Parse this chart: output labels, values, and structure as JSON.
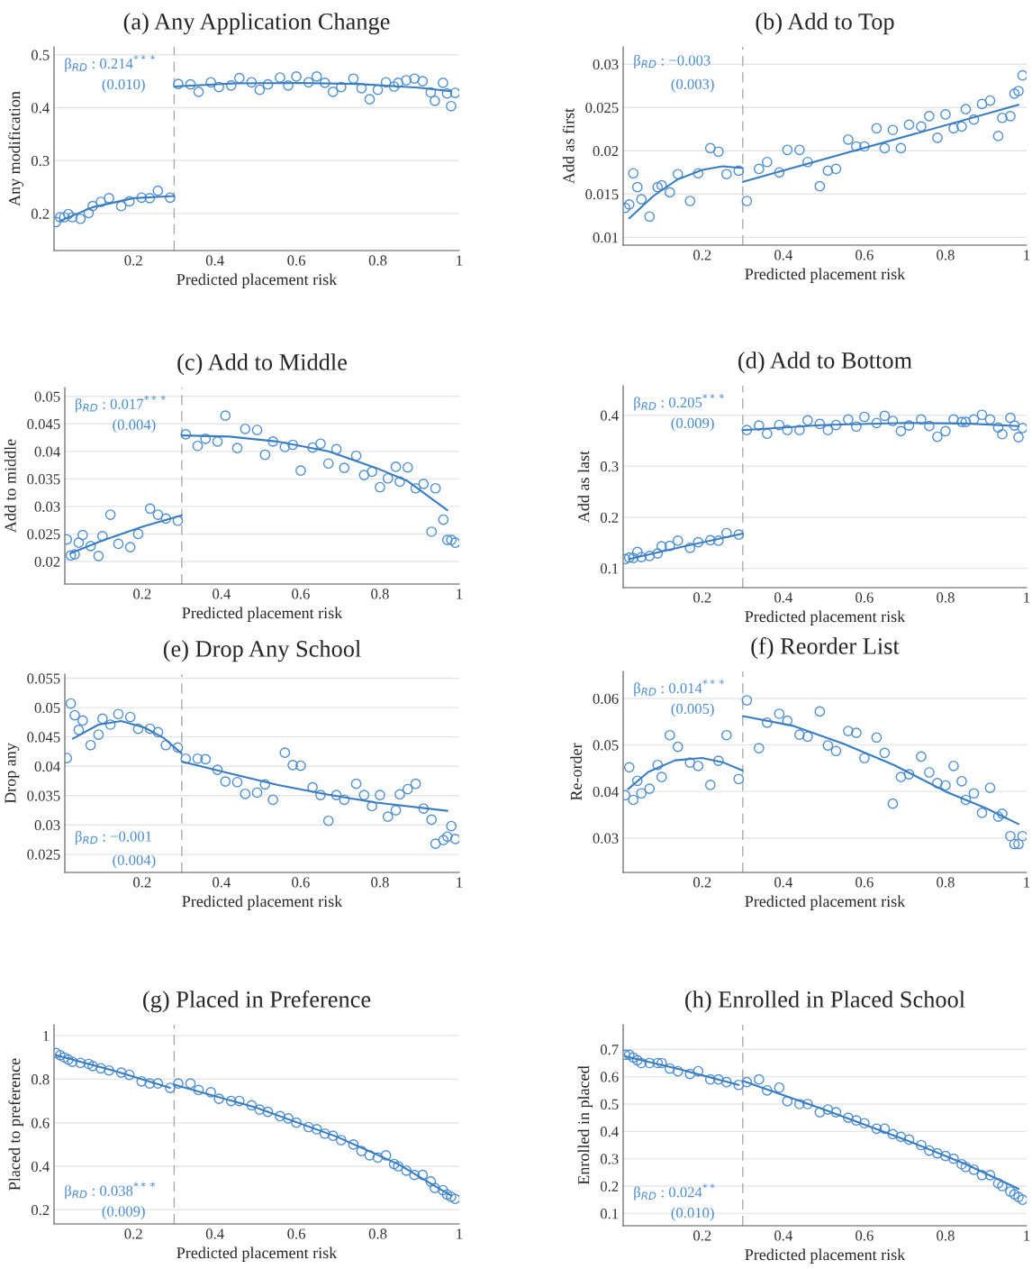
{
  "chart_data": [
    {
      "type": "scatter",
      "title": "(a) Any Application Change",
      "xlabel": "Predicted placement risk",
      "ylabel": "Any modification",
      "xlim": [
        0.005,
        1
      ],
      "xticks": [
        0.2,
        0.4,
        0.6,
        0.8,
        1
      ],
      "ylim": [
        0.13,
        0.515
      ],
      "yticks": [
        0.2,
        0.3,
        0.4,
        0.5
      ],
      "grid": "y",
      "annotations": [
        "β$_{RD}$ : 0.214$^{***}$",
        "(0.010)"
      ],
      "ref_lines": [
        {
          "axis": "x",
          "value": 0.3,
          "color": "#aaaaaa",
          "line_style": "dashed"
        }
      ],
      "series": [
        {
          "type": "scatter",
          "marker": "circle",
          "color": "#4f8fcd",
          "x": [
            0.01,
            0.02,
            0.03,
            0.04,
            0.05,
            0.07,
            0.09,
            0.1,
            0.12,
            0.14,
            0.17,
            0.19,
            0.22,
            0.24,
            0.26,
            0.29
          ],
          "values": [
            0.184,
            0.193,
            0.193,
            0.199,
            0.193,
            0.19,
            0.201,
            0.214,
            0.222,
            0.229,
            0.214,
            0.223,
            0.23,
            0.229,
            0.243,
            0.23
          ]
        },
        {
          "type": "scatter",
          "marker": "circle",
          "color": "#4f8fcd",
          "x": [
            0.31,
            0.34,
            0.36,
            0.39,
            0.41,
            0.44,
            0.46,
            0.49,
            0.51,
            0.53,
            0.56,
            0.58,
            0.6,
            0.63,
            0.65,
            0.67,
            0.69,
            0.71,
            0.74,
            0.76,
            0.78,
            0.8,
            0.82,
            0.84,
            0.85,
            0.87,
            0.89,
            0.91,
            0.93,
            0.94,
            0.96,
            0.97,
            0.98,
            0.99
          ],
          "values": [
            0.445,
            0.444,
            0.43,
            0.448,
            0.439,
            0.442,
            0.456,
            0.448,
            0.434,
            0.444,
            0.457,
            0.442,
            0.459,
            0.448,
            0.459,
            0.447,
            0.43,
            0.439,
            0.455,
            0.437,
            0.416,
            0.434,
            0.448,
            0.44,
            0.447,
            0.452,
            0.455,
            0.45,
            0.429,
            0.413,
            0.447,
            0.427,
            0.403,
            0.428
          ]
        },
        {
          "type": "line",
          "color": "#3a7dbf",
          "x": [
            0.02,
            0.1,
            0.2,
            0.3
          ],
          "values": [
            0.186,
            0.212,
            0.229,
            0.233
          ]
        },
        {
          "type": "line",
          "color": "#3a7dbf",
          "x": [
            0.3,
            0.45,
            0.6,
            0.75,
            0.9,
            0.98
          ],
          "values": [
            0.44,
            0.446,
            0.447,
            0.445,
            0.438,
            0.431
          ]
        }
      ]
    },
    {
      "type": "scatter",
      "title": "(b) Add to Top",
      "xlabel": "Predicted placement risk",
      "ylabel": "Add as first",
      "xlim": [
        0.005,
        1
      ],
      "xticks": [
        0.2,
        0.4,
        0.6,
        0.8,
        1
      ],
      "ylim": [
        0.0091,
        0.032
      ],
      "yticks": [
        0.01,
        0.015,
        0.02,
        0.025,
        0.03
      ],
      "grid": "y",
      "annotations": [
        "β$_{RD}$ : −0.003",
        "(0.003)"
      ],
      "ref_lines": [
        {
          "axis": "x",
          "value": 0.3,
          "color": "#aaaaaa",
          "line_style": "dashed"
        }
      ],
      "series": [
        {
          "type": "scatter",
          "marker": "circle",
          "color": "#4f8fcd",
          "x": [
            0.01,
            0.02,
            0.03,
            0.04,
            0.05,
            0.07,
            0.09,
            0.1,
            0.12,
            0.14,
            0.17,
            0.19,
            0.22,
            0.24,
            0.26,
            0.29
          ],
          "values": [
            0.0134,
            0.0138,
            0.0174,
            0.0158,
            0.0144,
            0.0124,
            0.0158,
            0.016,
            0.0152,
            0.0173,
            0.0142,
            0.0174,
            0.0203,
            0.0199,
            0.0173,
            0.0177
          ]
        },
        {
          "type": "scatter",
          "marker": "circle",
          "color": "#4f8fcd",
          "x": [
            0.31,
            0.34,
            0.36,
            0.39,
            0.41,
            0.44,
            0.46,
            0.49,
            0.51,
            0.53,
            0.56,
            0.58,
            0.6,
            0.63,
            0.65,
            0.67,
            0.69,
            0.71,
            0.74,
            0.76,
            0.78,
            0.8,
            0.82,
            0.84,
            0.85,
            0.87,
            0.89,
            0.91,
            0.93,
            0.94,
            0.96,
            0.97,
            0.98,
            0.99
          ],
          "values": [
            0.0142,
            0.0179,
            0.0187,
            0.0175,
            0.0201,
            0.0201,
            0.0187,
            0.0159,
            0.0177,
            0.0179,
            0.0213,
            0.0205,
            0.0205,
            0.0226,
            0.0203,
            0.0224,
            0.0203,
            0.023,
            0.0228,
            0.024,
            0.0215,
            0.0242,
            0.0226,
            0.0228,
            0.0248,
            0.0236,
            0.0254,
            0.0258,
            0.0217,
            0.0238,
            0.024,
            0.0266,
            0.0269,
            0.0287
          ]
        },
        {
          "type": "line",
          "color": "#3a7dbf",
          "x": [
            0.02,
            0.08,
            0.14,
            0.2,
            0.25,
            0.3
          ],
          "values": [
            0.0122,
            0.0148,
            0.0167,
            0.0178,
            0.0182,
            0.018
          ]
        },
        {
          "type": "line",
          "color": "#3a7dbf",
          "x": [
            0.3,
            0.98
          ],
          "values": [
            0.0164,
            0.0253
          ]
        }
      ]
    },
    {
      "type": "scatter",
      "title": "(c) Add to Middle",
      "xlabel": "Predicted placement risk",
      "ylabel": "Add to middle",
      "xlim": [
        0.005,
        1
      ],
      "xticks": [
        0.2,
        0.4,
        0.6,
        0.8,
        1
      ],
      "ylim": [
        0.0159,
        0.0516
      ],
      "yticks": [
        0.02,
        0.025,
        0.03,
        0.035,
        0.04,
        0.045,
        0.05
      ],
      "grid": "y",
      "annotations": [
        "β$_{RD}$ : 0.017$^{***}$",
        "(0.004)"
      ],
      "ref_lines": [
        {
          "axis": "x",
          "value": 0.3,
          "color": "#aaaaaa",
          "line_style": "dashed"
        }
      ],
      "series": [
        {
          "type": "scatter",
          "marker": "circle",
          "color": "#4f8fcd",
          "x": [
            0.01,
            0.02,
            0.03,
            0.04,
            0.05,
            0.07,
            0.09,
            0.1,
            0.12,
            0.14,
            0.17,
            0.19,
            0.22,
            0.24,
            0.26,
            0.29
          ],
          "values": [
            0.024,
            0.0211,
            0.0213,
            0.0234,
            0.0248,
            0.0228,
            0.021,
            0.0246,
            0.0285,
            0.0232,
            0.0226,
            0.025,
            0.0296,
            0.0285,
            0.0278,
            0.0274
          ]
        },
        {
          "type": "scatter",
          "marker": "circle",
          "color": "#4f8fcd",
          "x": [
            0.31,
            0.34,
            0.36,
            0.39,
            0.41,
            0.44,
            0.46,
            0.49,
            0.51,
            0.53,
            0.56,
            0.58,
            0.6,
            0.63,
            0.65,
            0.67,
            0.69,
            0.71,
            0.74,
            0.76,
            0.78,
            0.8,
            0.82,
            0.84,
            0.85,
            0.87,
            0.89,
            0.91,
            0.93,
            0.94,
            0.96,
            0.97,
            0.98,
            0.99
          ],
          "values": [
            0.0431,
            0.041,
            0.0423,
            0.0418,
            0.0465,
            0.0406,
            0.0441,
            0.0439,
            0.0394,
            0.0418,
            0.0408,
            0.0412,
            0.0365,
            0.0407,
            0.0414,
            0.0378,
            0.0404,
            0.037,
            0.0392,
            0.0357,
            0.0363,
            0.0335,
            0.0351,
            0.0372,
            0.0345,
            0.0371,
            0.0333,
            0.0341,
            0.0254,
            0.0333,
            0.0276,
            0.0239,
            0.0239,
            0.0234
          ]
        },
        {
          "type": "line",
          "color": "#3a7dbf",
          "x": [
            0.02,
            0.1,
            0.2,
            0.3
          ],
          "values": [
            0.0215,
            0.0238,
            0.0263,
            0.0284
          ]
        },
        {
          "type": "line",
          "color": "#3a7dbf",
          "x": [
            0.3,
            0.42,
            0.54,
            0.67,
            0.79,
            0.87,
            0.97
          ],
          "values": [
            0.0429,
            0.0427,
            0.0418,
            0.04,
            0.037,
            0.0346,
            0.0293
          ]
        }
      ]
    },
    {
      "type": "scatter",
      "title": "(d) Add to Bottom",
      "xlabel": "Predicted placement risk",
      "ylabel": "Add as last",
      "xlim": [
        0.005,
        1
      ],
      "xticks": [
        0.2,
        0.4,
        0.6,
        0.8,
        1
      ],
      "ylim": [
        0.062,
        0.458
      ],
      "yticks": [
        0.1,
        0.2,
        0.3,
        0.4
      ],
      "grid": "y",
      "annotations": [
        "β$_{RD}$ : 0.205$^{***}$",
        "(0.009)"
      ],
      "ref_lines": [
        {
          "axis": "x",
          "value": 0.3,
          "color": "#aaaaaa",
          "line_style": "dashed"
        }
      ],
      "series": [
        {
          "type": "scatter",
          "marker": "circle",
          "color": "#4f8fcd",
          "x": [
            0.01,
            0.02,
            0.03,
            0.04,
            0.05,
            0.07,
            0.09,
            0.1,
            0.12,
            0.14,
            0.17,
            0.19,
            0.22,
            0.24,
            0.26,
            0.29
          ],
          "values": [
            0.118,
            0.121,
            0.12,
            0.132,
            0.122,
            0.124,
            0.129,
            0.143,
            0.144,
            0.154,
            0.14,
            0.151,
            0.155,
            0.154,
            0.169,
            0.166
          ]
        },
        {
          "type": "scatter",
          "marker": "circle",
          "color": "#4f8fcd",
          "x": [
            0.31,
            0.34,
            0.36,
            0.39,
            0.41,
            0.44,
            0.46,
            0.49,
            0.51,
            0.53,
            0.56,
            0.58,
            0.6,
            0.63,
            0.65,
            0.67,
            0.69,
            0.71,
            0.74,
            0.76,
            0.78,
            0.8,
            0.82,
            0.84,
            0.85,
            0.87,
            0.89,
            0.91,
            0.93,
            0.94,
            0.96,
            0.97,
            0.98,
            0.99
          ],
          "values": [
            0.371,
            0.38,
            0.364,
            0.381,
            0.371,
            0.371,
            0.39,
            0.383,
            0.371,
            0.381,
            0.392,
            0.378,
            0.397,
            0.385,
            0.399,
            0.389,
            0.369,
            0.38,
            0.392,
            0.379,
            0.358,
            0.369,
            0.392,
            0.387,
            0.387,
            0.392,
            0.401,
            0.392,
            0.376,
            0.363,
            0.395,
            0.38,
            0.357,
            0.375
          ]
        },
        {
          "type": "line",
          "color": "#3a7dbf",
          "x": [
            0.02,
            0.15,
            0.3
          ],
          "values": [
            0.118,
            0.142,
            0.168
          ]
        },
        {
          "type": "line",
          "color": "#3a7dbf",
          "x": [
            0.3,
            0.5,
            0.7,
            0.85,
            0.98
          ],
          "values": [
            0.371,
            0.381,
            0.385,
            0.384,
            0.379
          ]
        }
      ]
    },
    {
      "type": "scatter",
      "title": "(e) Drop Any School",
      "xlabel": "Predicted placement risk",
      "ylabel": "Drop any",
      "xlim": [
        0.005,
        1
      ],
      "xticks": [
        0.2,
        0.4,
        0.6,
        0.8,
        1
      ],
      "ylim": [
        0.0219,
        0.0557
      ],
      "yticks": [
        0.025,
        0.03,
        0.035,
        0.04,
        0.045,
        0.05,
        0.055
      ],
      "grid": "y",
      "annotations": [
        "β$_{RD}$ : −0.001",
        "(0.004)"
      ],
      "ref_lines": [
        {
          "axis": "x",
          "value": 0.3,
          "color": "#aaaaaa",
          "line_style": "dashed"
        }
      ],
      "series": [
        {
          "type": "scatter",
          "marker": "circle",
          "color": "#4f8fcd",
          "x": [
            0.01,
            0.02,
            0.03,
            0.04,
            0.05,
            0.07,
            0.09,
            0.1,
            0.12,
            0.14,
            0.17,
            0.19,
            0.22,
            0.24,
            0.26,
            0.29
          ],
          "values": [
            0.0414,
            0.0507,
            0.0487,
            0.0462,
            0.0478,
            0.0436,
            0.0454,
            0.0481,
            0.0471,
            0.0489,
            0.0484,
            0.0464,
            0.0464,
            0.0458,
            0.0436,
            0.0432
          ]
        },
        {
          "type": "scatter",
          "marker": "circle",
          "color": "#4f8fcd",
          "x": [
            0.31,
            0.34,
            0.36,
            0.39,
            0.41,
            0.44,
            0.46,
            0.49,
            0.51,
            0.53,
            0.56,
            0.58,
            0.6,
            0.63,
            0.65,
            0.67,
            0.69,
            0.71,
            0.74,
            0.76,
            0.78,
            0.8,
            0.82,
            0.84,
            0.85,
            0.87,
            0.89,
            0.91,
            0.93,
            0.94,
            0.96,
            0.97,
            0.98,
            0.99
          ],
          "values": [
            0.0413,
            0.0413,
            0.0412,
            0.0394,
            0.0374,
            0.0373,
            0.0353,
            0.0355,
            0.0369,
            0.0343,
            0.0423,
            0.0402,
            0.0401,
            0.0364,
            0.0351,
            0.0307,
            0.0351,
            0.0343,
            0.037,
            0.0351,
            0.0332,
            0.0351,
            0.0314,
            0.0325,
            0.0352,
            0.0361,
            0.037,
            0.0328,
            0.0309,
            0.0268,
            0.0274,
            0.028,
            0.0298,
            0.0276
          ]
        },
        {
          "type": "line",
          "color": "#3a7dbf",
          "x": [
            0.025,
            0.09,
            0.147,
            0.206,
            0.255,
            0.299
          ],
          "values": [
            0.0447,
            0.0471,
            0.0477,
            0.0466,
            0.0448,
            0.0422
          ]
        },
        {
          "type": "line",
          "color": "#3a7dbf",
          "x": [
            0.3,
            0.42,
            0.543,
            0.667,
            0.79,
            0.97
          ],
          "values": [
            0.0408,
            0.0388,
            0.0368,
            0.0352,
            0.0338,
            0.0324
          ]
        }
      ]
    },
    {
      "type": "scatter",
      "title": "(f) Reorder List",
      "xlabel": "Predicted placement risk",
      "ylabel": "Re-order",
      "xlim": [
        0.005,
        1
      ],
      "xticks": [
        0.2,
        0.4,
        0.6,
        0.8,
        1
      ],
      "ylim": [
        0.0226,
        0.0658
      ],
      "yticks": [
        0.03,
        0.04,
        0.05,
        0.06
      ],
      "grid": "y",
      "annotations": [
        "β$_{RD}$ : 0.014$^{***}$",
        "(0.005)"
      ],
      "ref_lines": [
        {
          "axis": "x",
          "value": 0.3,
          "color": "#aaaaaa",
          "line_style": "dashed"
        }
      ],
      "series": [
        {
          "type": "scatter",
          "marker": "circle",
          "color": "#4f8fcd",
          "x": [
            0.01,
            0.02,
            0.03,
            0.04,
            0.05,
            0.07,
            0.09,
            0.1,
            0.12,
            0.14,
            0.17,
            0.19,
            0.22,
            0.24,
            0.26,
            0.29
          ],
          "values": [
            0.0392,
            0.0452,
            0.0382,
            0.0423,
            0.0396,
            0.0406,
            0.0457,
            0.0431,
            0.0521,
            0.0496,
            0.0462,
            0.0455,
            0.0414,
            0.0466,
            0.0521,
            0.0427
          ]
        },
        {
          "type": "scatter",
          "marker": "circle",
          "color": "#4f8fcd",
          "x": [
            0.31,
            0.34,
            0.36,
            0.39,
            0.41,
            0.44,
            0.46,
            0.49,
            0.51,
            0.53,
            0.56,
            0.58,
            0.6,
            0.63,
            0.65,
            0.67,
            0.69,
            0.71,
            0.74,
            0.76,
            0.78,
            0.8,
            0.82,
            0.84,
            0.85,
            0.87,
            0.89,
            0.91,
            0.93,
            0.94,
            0.96,
            0.97,
            0.98,
            0.99
          ],
          "values": [
            0.0596,
            0.0493,
            0.0548,
            0.0567,
            0.0552,
            0.0522,
            0.0518,
            0.0572,
            0.0499,
            0.0487,
            0.053,
            0.0526,
            0.0472,
            0.0516,
            0.0483,
            0.0374,
            0.0431,
            0.0437,
            0.0475,
            0.0441,
            0.0418,
            0.0413,
            0.0455,
            0.0422,
            0.0382,
            0.0396,
            0.0354,
            0.0408,
            0.0346,
            0.0352,
            0.0304,
            0.0287,
            0.0287,
            0.0304
          ]
        },
        {
          "type": "line",
          "color": "#3a7dbf",
          "x": [
            0.017,
            0.067,
            0.133,
            0.2,
            0.25,
            0.3
          ],
          "values": [
            0.0405,
            0.0442,
            0.0467,
            0.0472,
            0.0463,
            0.0445
          ]
        },
        {
          "type": "line",
          "color": "#3a7dbf",
          "x": [
            0.3,
            0.425,
            0.55,
            0.675,
            0.8,
            0.9,
            0.98
          ],
          "values": [
            0.0562,
            0.0541,
            0.0502,
            0.0456,
            0.04,
            0.0364,
            0.033
          ]
        }
      ]
    },
    {
      "type": "scatter",
      "title": "(g) Placed in Preference",
      "xlabel": "Predicted placement risk",
      "ylabel": "Placed to preference",
      "xlim": [
        0.005,
        1
      ],
      "xticks": [
        0.2,
        0.4,
        0.6,
        0.8,
        1
      ],
      "ylim": [
        0.135,
        1.05
      ],
      "yticks": [
        0.2,
        0.4,
        0.6,
        0.8,
        1
      ],
      "grid": "y",
      "annotations": [
        "β$_{RD}$ : 0.038$^{***}$",
        "(0.009)"
      ],
      "ref_lines": [
        {
          "axis": "x",
          "value": 0.3,
          "color": "#aaaaaa",
          "line_style": "dashed"
        }
      ],
      "series": [
        {
          "type": "scatter",
          "marker": "circle",
          "color": "#4f8fcd",
          "x": [
            0.01,
            0.02,
            0.03,
            0.04,
            0.05,
            0.07,
            0.09,
            0.1,
            0.12,
            0.14,
            0.17,
            0.19,
            0.22,
            0.24,
            0.26,
            0.29
          ],
          "values": [
            0.92,
            0.91,
            0.9,
            0.89,
            0.88,
            0.875,
            0.87,
            0.86,
            0.85,
            0.84,
            0.83,
            0.82,
            0.79,
            0.78,
            0.78,
            0.76
          ]
        },
        {
          "type": "scatter",
          "marker": "circle",
          "color": "#4f8fcd",
          "x": [
            0.31,
            0.34,
            0.36,
            0.39,
            0.41,
            0.44,
            0.46,
            0.49,
            0.51,
            0.53,
            0.56,
            0.58,
            0.6,
            0.63,
            0.65,
            0.67,
            0.69,
            0.71,
            0.74,
            0.76,
            0.78,
            0.8,
            0.82,
            0.84,
            0.85,
            0.87,
            0.89,
            0.91,
            0.93,
            0.94,
            0.96,
            0.97,
            0.98,
            0.99
          ],
          "values": [
            0.78,
            0.78,
            0.75,
            0.74,
            0.71,
            0.7,
            0.7,
            0.68,
            0.66,
            0.65,
            0.63,
            0.62,
            0.6,
            0.58,
            0.57,
            0.55,
            0.54,
            0.52,
            0.5,
            0.47,
            0.45,
            0.44,
            0.45,
            0.41,
            0.4,
            0.38,
            0.36,
            0.36,
            0.33,
            0.3,
            0.29,
            0.27,
            0.26,
            0.25
          ]
        },
        {
          "type": "line",
          "color": "#3a7dbf",
          "x": [
            0.01,
            0.15,
            0.29
          ],
          "values": [
            0.91,
            0.84,
            0.76
          ]
        },
        {
          "type": "line",
          "color": "#3a7dbf",
          "x": [
            0.3,
            0.5,
            0.7,
            0.85,
            0.98
          ],
          "values": [
            0.775,
            0.67,
            0.535,
            0.41,
            0.265
          ]
        }
      ]
    },
    {
      "type": "scatter",
      "title": "(h) Enrolled in Placed School",
      "xlabel": "Predicted placement risk",
      "ylabel": "Enrolled in placed",
      "xlim": [
        0.005,
        1
      ],
      "xticks": [
        0.2,
        0.4,
        0.6,
        0.8,
        1
      ],
      "ylim": [
        0.055,
        0.79
      ],
      "yticks": [
        0.1,
        0.2,
        0.3,
        0.4,
        0.5,
        0.6,
        0.7
      ],
      "grid": "y",
      "annotations": [
        "β$_{RD}$ : 0.024$^{**}$",
        "(0.010)"
      ],
      "ref_lines": [
        {
          "axis": "x",
          "value": 0.3,
          "color": "#aaaaaa",
          "line_style": "dashed"
        }
      ],
      "series": [
        {
          "type": "scatter",
          "marker": "circle",
          "color": "#4f8fcd",
          "x": [
            0.01,
            0.02,
            0.03,
            0.04,
            0.05,
            0.07,
            0.09,
            0.1,
            0.12,
            0.14,
            0.17,
            0.19,
            0.22,
            0.24,
            0.26,
            0.29
          ],
          "values": [
            0.68,
            0.68,
            0.67,
            0.66,
            0.65,
            0.65,
            0.65,
            0.65,
            0.63,
            0.62,
            0.61,
            0.62,
            0.59,
            0.59,
            0.58,
            0.57
          ]
        },
        {
          "type": "scatter",
          "marker": "circle",
          "color": "#4f8fcd",
          "x": [
            0.31,
            0.34,
            0.36,
            0.39,
            0.41,
            0.44,
            0.46,
            0.49,
            0.51,
            0.53,
            0.56,
            0.58,
            0.6,
            0.63,
            0.65,
            0.67,
            0.69,
            0.71,
            0.74,
            0.76,
            0.78,
            0.8,
            0.82,
            0.84,
            0.85,
            0.87,
            0.89,
            0.91,
            0.93,
            0.94,
            0.96,
            0.97,
            0.98,
            0.99
          ],
          "values": [
            0.58,
            0.59,
            0.55,
            0.56,
            0.51,
            0.5,
            0.5,
            0.47,
            0.48,
            0.47,
            0.45,
            0.44,
            0.43,
            0.41,
            0.41,
            0.39,
            0.38,
            0.37,
            0.35,
            0.33,
            0.32,
            0.31,
            0.3,
            0.28,
            0.27,
            0.26,
            0.24,
            0.24,
            0.21,
            0.2,
            0.18,
            0.17,
            0.16,
            0.15
          ]
        },
        {
          "type": "line",
          "color": "#3a7dbf",
          "x": [
            0.01,
            0.15,
            0.29
          ],
          "values": [
            0.675,
            0.625,
            0.57
          ]
        },
        {
          "type": "line",
          "color": "#3a7dbf",
          "x": [
            0.3,
            0.5,
            0.7,
            0.85,
            0.98
          ],
          "values": [
            0.585,
            0.48,
            0.37,
            0.28,
            0.19
          ]
        }
      ]
    }
  ]
}
